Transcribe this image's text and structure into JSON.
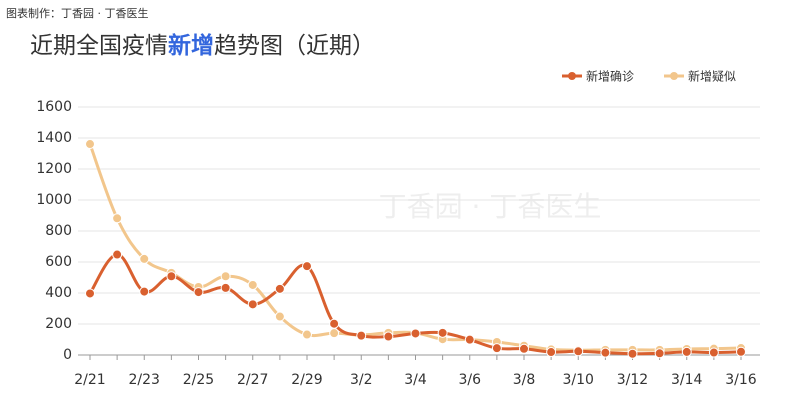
{
  "credit": "图表制作：丁香园 · 丁香医生",
  "watermark": "丁香园 · 丁香医生",
  "chart_data": {
    "type": "line",
    "title": [
      "近期全国疫情",
      "新增",
      "趋势图（近期）"
    ],
    "categories": [
      "2/21",
      null,
      "2/23",
      null,
      "2/25",
      null,
      "2/27",
      null,
      "2/29",
      null,
      "3/2",
      null,
      "3/4",
      null,
      "3/6",
      null,
      "3/8",
      null,
      "3/10",
      null,
      "3/12",
      null,
      "3/14",
      null,
      "3/16"
    ],
    "series": [
      {
        "name": "新增确诊",
        "color": "#d9602f",
        "values": [
          397,
          648,
          409,
          508,
          406,
          433,
          327,
          427,
          573,
          202,
          125,
          119,
          139,
          143,
          99,
          44,
          40,
          19,
          24,
          15,
          8,
          11,
          20,
          16,
          21
        ]
      },
      {
        "name": "新增疑似",
        "color": "#f2c68c",
        "values": [
          1361,
          882,
          620,
          530,
          439,
          508,
          452,
          248,
          132,
          141,
          129,
          143,
          143,
          102,
          99,
          84,
          60,
          36,
          31,
          33,
          33,
          33,
          39,
          41,
          45
        ]
      }
    ],
    "ylim": [
      0,
      1600
    ],
    "yticks": [
      0,
      200,
      400,
      600,
      800,
      1000,
      1200,
      1400,
      1600
    ],
    "grid": true,
    "legend": "top-right",
    "title_highlight_color": "#3366dd"
  }
}
